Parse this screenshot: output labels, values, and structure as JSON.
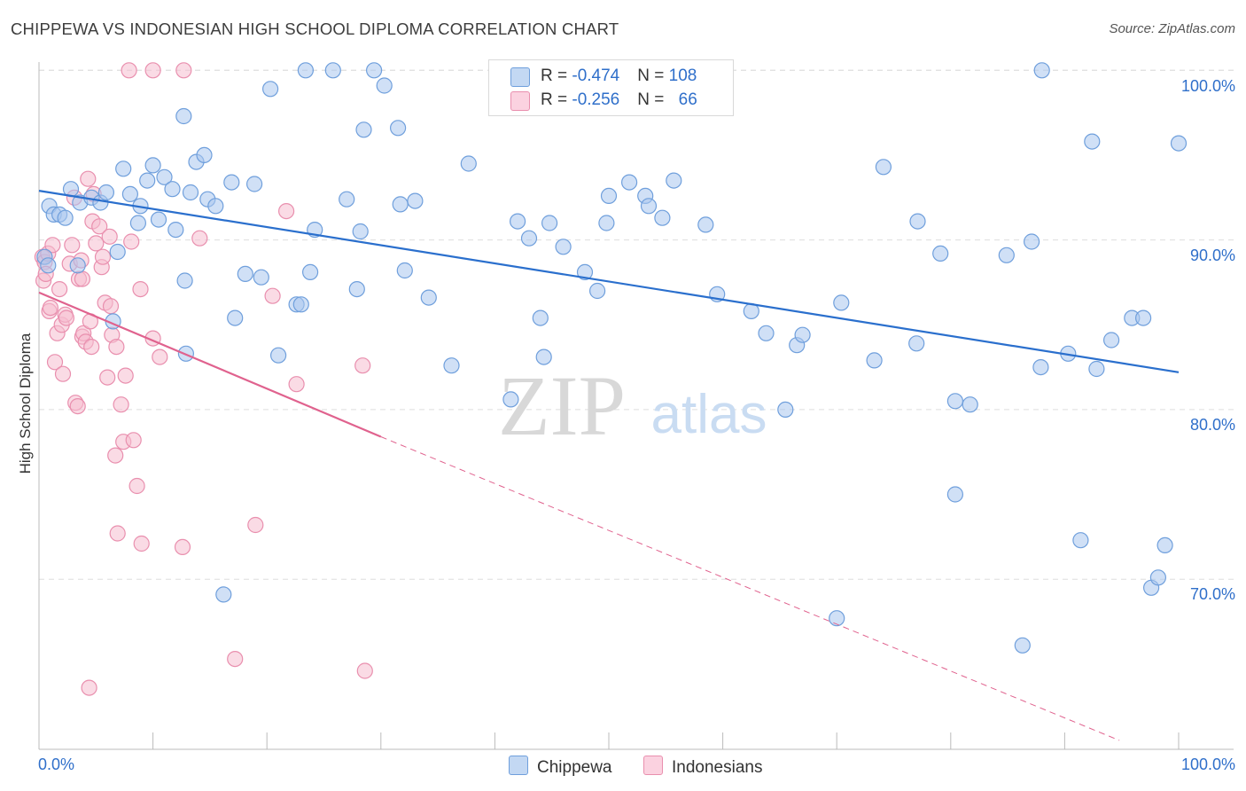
{
  "title": "CHIPPEWA VS INDONESIAN HIGH SCHOOL DIPLOMA CORRELATION CHART",
  "source": "Source: ZipAtlas.com",
  "watermark": {
    "zip": "ZIP",
    "atlas": "atlas"
  },
  "legend_top": {
    "rows": [
      {
        "r_label": "R = ",
        "r_value": "-0.474",
        "n_label": "N = ",
        "n_value": "108"
      },
      {
        "r_label": "R = ",
        "r_value": "-0.256",
        "n_label": "N = ",
        "n_value": "66"
      }
    ]
  },
  "colors": {
    "chippewa_fill": "#a9c7ee",
    "chippewa_stroke": "#6f9fdc",
    "chippewa_line": "#2a6fcd",
    "indonesian_fill": "#f5bdd0",
    "indonesian_stroke": "#e98fae",
    "indonesian_line": "#e0628e",
    "tick_text": "#2f6fca",
    "grid": "#dddddd"
  },
  "chart_data": {
    "type": "scatter",
    "title": "CHIPPEWA VS INDONESIAN HIGH SCHOOL DIPLOMA CORRELATION CHART",
    "xlabel": "",
    "ylabel": "High School Diploma",
    "xlim": [
      0,
      100
    ],
    "ylim": [
      60.5,
      101.5
    ],
    "x_tick_labels": [
      "0.0%",
      "100.0%"
    ],
    "y_ticks": [
      70,
      80,
      90,
      100
    ],
    "y_tick_labels": [
      "70.0%",
      "80.0%",
      "90.0%",
      "100.0%"
    ],
    "grid": true,
    "legend_position": "bottom",
    "series": [
      {
        "name": "Chippewa",
        "R": -0.474,
        "N": 108,
        "trend": {
          "x": [
            0,
            100
          ],
          "y": [
            92.9,
            82.2
          ],
          "style": "solid"
        },
        "points": [
          [
            0.5,
            89.0
          ],
          [
            0.8,
            88.5
          ],
          [
            0.9,
            92.0
          ],
          [
            1.3,
            91.5
          ],
          [
            1.8,
            91.5
          ],
          [
            2.3,
            91.3
          ],
          [
            2.8,
            93.0
          ],
          [
            3.4,
            88.5
          ],
          [
            3.6,
            92.2
          ],
          [
            4.6,
            92.5
          ],
          [
            5.4,
            92.2
          ],
          [
            5.9,
            92.8
          ],
          [
            6.5,
            85.2
          ],
          [
            6.9,
            89.3
          ],
          [
            7.4,
            94.2
          ],
          [
            8.0,
            92.7
          ],
          [
            8.7,
            91.0
          ],
          [
            8.9,
            92.0
          ],
          [
            9.5,
            93.5
          ],
          [
            10.0,
            94.4
          ],
          [
            10.5,
            91.2
          ],
          [
            11.0,
            93.7
          ],
          [
            11.7,
            93.0
          ],
          [
            12.0,
            90.6
          ],
          [
            12.7,
            97.3
          ],
          [
            12.8,
            87.6
          ],
          [
            12.9,
            83.3
          ],
          [
            13.3,
            92.8
          ],
          [
            13.8,
            94.6
          ],
          [
            14.5,
            95.0
          ],
          [
            14.8,
            92.4
          ],
          [
            15.5,
            92.0
          ],
          [
            16.2,
            69.1
          ],
          [
            16.9,
            93.4
          ],
          [
            17.2,
            85.4
          ],
          [
            18.1,
            88.0
          ],
          [
            18.9,
            93.3
          ],
          [
            19.5,
            87.8
          ],
          [
            20.3,
            98.9
          ],
          [
            21.0,
            83.2
          ],
          [
            22.6,
            86.2
          ],
          [
            23.0,
            86.2
          ],
          [
            23.4,
            100.0
          ],
          [
            23.8,
            88.1
          ],
          [
            24.2,
            90.6
          ],
          [
            25.8,
            100.0
          ],
          [
            27.0,
            92.4
          ],
          [
            27.9,
            87.1
          ],
          [
            28.2,
            90.5
          ],
          [
            28.5,
            96.5
          ],
          [
            29.4,
            100.0
          ],
          [
            30.3,
            99.1
          ],
          [
            31.5,
            96.6
          ],
          [
            31.7,
            92.1
          ],
          [
            32.1,
            88.2
          ],
          [
            33.0,
            92.3
          ],
          [
            34.2,
            86.6
          ],
          [
            36.2,
            82.6
          ],
          [
            37.7,
            94.5
          ],
          [
            41.4,
            80.6
          ],
          [
            42.0,
            91.1
          ],
          [
            43.0,
            90.1
          ],
          [
            44.0,
            85.4
          ],
          [
            44.3,
            83.1
          ],
          [
            44.8,
            91.0
          ],
          [
            46.0,
            89.6
          ],
          [
            47.9,
            88.1
          ],
          [
            49.0,
            87.0
          ],
          [
            49.8,
            91.0
          ],
          [
            50.0,
            92.6
          ],
          [
            51.8,
            93.4
          ],
          [
            53.2,
            92.6
          ],
          [
            53.5,
            92.0
          ],
          [
            54.7,
            91.3
          ],
          [
            55.7,
            93.5
          ],
          [
            58.5,
            90.9
          ],
          [
            59.5,
            86.8
          ],
          [
            62.5,
            85.8
          ],
          [
            63.8,
            84.5
          ],
          [
            65.5,
            80.0
          ],
          [
            66.5,
            83.8
          ],
          [
            67.0,
            84.4
          ],
          [
            70.0,
            67.7
          ],
          [
            70.4,
            86.3
          ],
          [
            73.3,
            82.9
          ],
          [
            74.1,
            94.3
          ],
          [
            77.0,
            83.9
          ],
          [
            77.1,
            91.1
          ],
          [
            79.1,
            89.2
          ],
          [
            80.4,
            75.0
          ],
          [
            80.4,
            80.5
          ],
          [
            81.7,
            80.3
          ],
          [
            84.9,
            89.1
          ],
          [
            86.3,
            66.1
          ],
          [
            87.1,
            89.9
          ],
          [
            87.9,
            82.5
          ],
          [
            88.0,
            100.0
          ],
          [
            90.3,
            83.3
          ],
          [
            91.4,
            72.3
          ],
          [
            92.4,
            95.8
          ],
          [
            92.8,
            82.4
          ],
          [
            94.1,
            84.1
          ],
          [
            95.9,
            85.4
          ],
          [
            96.9,
            85.4
          ],
          [
            97.6,
            69.5
          ],
          [
            98.2,
            70.1
          ],
          [
            98.8,
            72.0
          ],
          [
            100.0,
            95.7
          ]
        ]
      },
      {
        "name": "Indonesians",
        "R": -0.256,
        "N": 66,
        "trend": {
          "x": [
            0,
            30.0,
            94.8
          ],
          "y": [
            86.9,
            78.4,
            60.5
          ],
          "style": "solid then dashed"
        },
        "points": [
          [
            0.3,
            89.0
          ],
          [
            0.4,
            87.6
          ],
          [
            0.5,
            88.7
          ],
          [
            0.6,
            88.0
          ],
          [
            0.8,
            89.2
          ],
          [
            0.9,
            85.8
          ],
          [
            1.0,
            86.0
          ],
          [
            1.2,
            89.7
          ],
          [
            1.4,
            82.8
          ],
          [
            1.6,
            84.5
          ],
          [
            1.8,
            87.1
          ],
          [
            2.0,
            85.0
          ],
          [
            2.1,
            82.1
          ],
          [
            2.3,
            85.6
          ],
          [
            2.4,
            85.4
          ],
          [
            2.7,
            88.6
          ],
          [
            2.9,
            89.7
          ],
          [
            3.1,
            92.5
          ],
          [
            3.2,
            80.4
          ],
          [
            3.4,
            80.2
          ],
          [
            3.5,
            87.7
          ],
          [
            3.7,
            88.8
          ],
          [
            3.8,
            87.7
          ],
          [
            3.8,
            84.3
          ],
          [
            3.9,
            84.5
          ],
          [
            4.1,
            84.0
          ],
          [
            4.3,
            93.6
          ],
          [
            4.4,
            63.6
          ],
          [
            4.5,
            85.2
          ],
          [
            4.6,
            83.7
          ],
          [
            4.7,
            91.1
          ],
          [
            4.8,
            92.7
          ],
          [
            5.0,
            89.8
          ],
          [
            5.3,
            90.8
          ],
          [
            5.5,
            88.4
          ],
          [
            5.6,
            89.0
          ],
          [
            5.8,
            86.3
          ],
          [
            6.0,
            81.9
          ],
          [
            6.2,
            90.2
          ],
          [
            6.3,
            86.1
          ],
          [
            6.4,
            84.4
          ],
          [
            6.7,
            77.3
          ],
          [
            6.8,
            83.7
          ],
          [
            6.9,
            72.7
          ],
          [
            7.2,
            80.3
          ],
          [
            7.4,
            78.1
          ],
          [
            7.6,
            82.0
          ],
          [
            7.9,
            100.0
          ],
          [
            8.1,
            89.9
          ],
          [
            8.3,
            78.2
          ],
          [
            8.6,
            75.5
          ],
          [
            8.9,
            87.1
          ],
          [
            9.0,
            72.1
          ],
          [
            10.0,
            84.2
          ],
          [
            10.0,
            100.0
          ],
          [
            10.6,
            83.1
          ],
          [
            12.6,
            71.9
          ],
          [
            12.7,
            100.0
          ],
          [
            14.1,
            90.1
          ],
          [
            17.2,
            65.3
          ],
          [
            19.0,
            73.2
          ],
          [
            20.5,
            86.7
          ],
          [
            21.7,
            91.7
          ],
          [
            22.6,
            81.5
          ],
          [
            28.4,
            82.6
          ],
          [
            28.6,
            64.6
          ]
        ]
      }
    ]
  },
  "legend_bottom": [
    {
      "label": "Chippewa"
    },
    {
      "label": "Indonesians"
    }
  ],
  "axis_text": {
    "ylabel": "High School Diploma",
    "x_left": "0.0%",
    "x_right": "100.0%",
    "y_labels": [
      "100.0%",
      "90.0%",
      "80.0%",
      "70.0%"
    ]
  }
}
